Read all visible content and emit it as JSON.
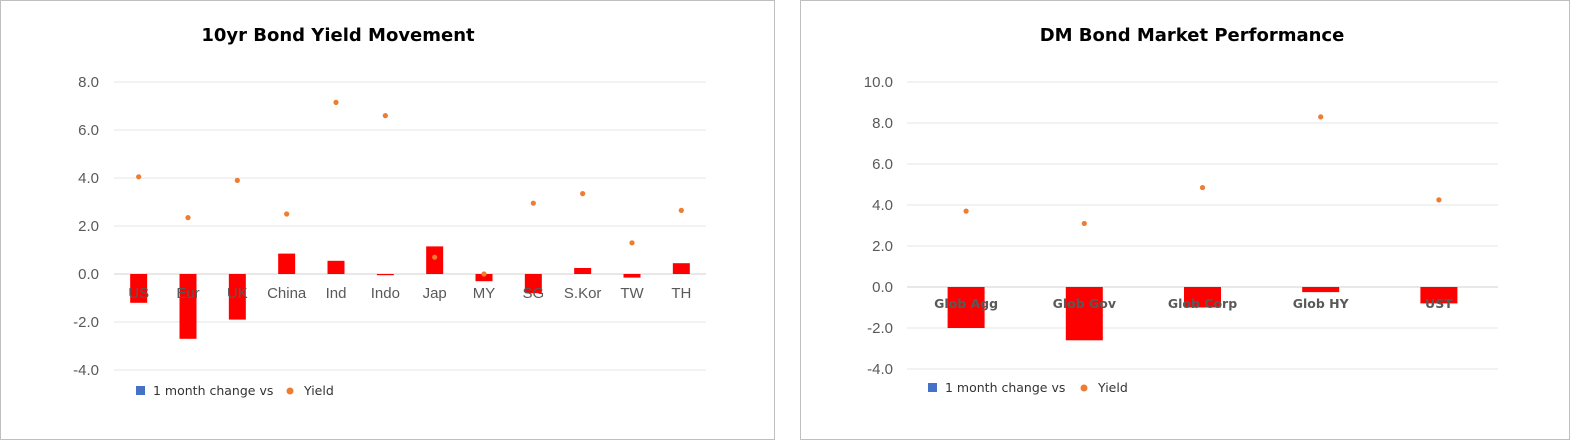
{
  "chart_data": [
    {
      "type": "bar",
      "title": "10yr Bond Yield Movement",
      "categories": [
        "US",
        "Eur",
        "UK",
        "China",
        "Ind",
        "Indo",
        "Jap",
        "MY",
        "SG",
        "S.Kor",
        "TW",
        "TH"
      ],
      "series": [
        {
          "name": "1 month change vs",
          "type": "bar",
          "color": "#ff0000",
          "values": [
            -1.2,
            -2.7,
            -1.9,
            0.85,
            0.55,
            -0.05,
            1.15,
            -0.3,
            -0.8,
            0.25,
            -0.15,
            0.45
          ]
        },
        {
          "name": "Yield",
          "type": "scatter",
          "color": "#ed7d31",
          "values": [
            4.05,
            2.35,
            3.9,
            2.5,
            7.15,
            6.6,
            0.7,
            0.0,
            2.95,
            3.35,
            1.3,
            2.65
          ]
        }
      ],
      "yticks": [
        "8.0",
        "6.0",
        "4.0",
        "2.0",
        "0.0",
        "-2.0",
        "-4.0"
      ],
      "ylim": [
        -4,
        8
      ],
      "grid": true,
      "legend_position": "bottom-left",
      "legend_bar_color": "#4472c4"
    },
    {
      "type": "bar",
      "title": "DM Bond Market Performance",
      "categories": [
        "Glob Agg",
        "Glob Gov",
        "Glob Corp",
        "Glob HY",
        "UST"
      ],
      "series": [
        {
          "name": "1 month change vs",
          "type": "bar",
          "color": "#ff0000",
          "values": [
            -2.0,
            -2.6,
            -1.0,
            -0.25,
            -0.8
          ]
        },
        {
          "name": "Yield",
          "type": "scatter",
          "color": "#ed7d31",
          "values": [
            3.7,
            3.1,
            4.85,
            8.3,
            4.25
          ]
        }
      ],
      "yticks": [
        "10.0",
        "8.0",
        "6.0",
        "4.0",
        "2.0",
        "0.0",
        "-2.0",
        "-4.0"
      ],
      "ylim": [
        -4,
        10
      ],
      "grid": true,
      "legend_position": "bottom-left",
      "legend_bar_color": "#4472c4"
    }
  ]
}
